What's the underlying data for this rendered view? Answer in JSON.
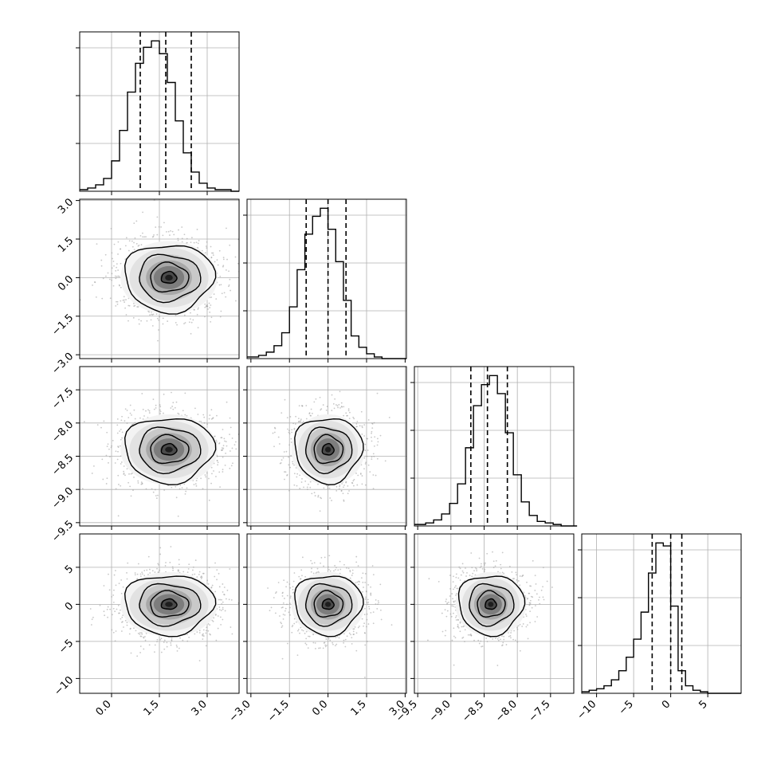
{
  "chart_data": {
    "type": "corner",
    "grid": true,
    "colors": {
      "line": "#000000",
      "grid": "#b0b0b0",
      "scatter": "#9a9a9a",
      "background": "#ffffff"
    },
    "parameters": [
      {
        "range": [
          -1.0,
          4.0
        ],
        "ticks": [
          0.0,
          1.5,
          3.0
        ],
        "tick_labels": [
          "0.0",
          "1.5",
          "3.0"
        ],
        "mean": 1.8,
        "std": 0.8,
        "quantiles": [
          0.9,
          1.7,
          2.5
        ]
      },
      {
        "range": [
          -3.15,
          3.05
        ],
        "ticks": [
          -3.0,
          -1.5,
          0.0,
          1.5,
          3.0
        ],
        "tick_labels": [
          "−3.0",
          "−1.5",
          "0.0",
          "1.5",
          "3.0"
        ],
        "mean": 0.0,
        "std": 0.75,
        "quantiles": [
          -0.85,
          0.0,
          0.7
        ]
      },
      {
        "range": [
          -9.55,
          -7.15
        ],
        "ticks": [
          -9.5,
          -9.0,
          -8.5,
          -8.0,
          -7.5
        ],
        "tick_labels": [
          "−9.5",
          "−9.0",
          "−8.5",
          "−8.0",
          "−7.5"
        ],
        "mean": -8.4,
        "std": 0.28,
        "quantiles": [
          -8.7,
          -8.45,
          -8.15
        ]
      },
      {
        "range": [
          -12.0,
          9.5
        ],
        "ticks": [
          -10,
          -5,
          0,
          5
        ],
        "tick_labels": [
          "−10",
          "−5",
          "0",
          "5"
        ],
        "mean": 0.0,
        "std": 2.3,
        "quantiles": [
          -2.5,
          0.0,
          1.5
        ]
      }
    ],
    "histograms": [
      {
        "param": 0,
        "bin_start": -1.0,
        "bin_width": 0.25,
        "counts": [
          1,
          2,
          4,
          8,
          19,
          38,
          62,
          80,
          90,
          94,
          86,
          68,
          44,
          24,
          12,
          5,
          2,
          1,
          1,
          0
        ]
      },
      {
        "param": 1,
        "bin_start": -3.0,
        "bin_width": 0.3,
        "counts": [
          1,
          2,
          4,
          8,
          16,
          32,
          55,
          77,
          88,
          93,
          80,
          60,
          36,
          14,
          7,
          3,
          1,
          0,
          0,
          0
        ]
      },
      {
        "param": 2,
        "bin_start": -9.5,
        "bin_width": 0.12,
        "counts": [
          1,
          2,
          4,
          8,
          15,
          28,
          52,
          80,
          94,
          100,
          88,
          62,
          34,
          16,
          7,
          3,
          2,
          1,
          0,
          0
        ]
      },
      {
        "param": 3,
        "bin_start": -12.0,
        "bin_width": 1.0,
        "counts": [
          1,
          2,
          3,
          5,
          9,
          15,
          24,
          36,
          54,
          80,
          100,
          98,
          58,
          15,
          5,
          2,
          1,
          0,
          0,
          0
        ]
      }
    ],
    "contour_levels": [
      0.12,
      0.45,
      0.78,
      0.95
    ],
    "pairs": [
      {
        "x": 0,
        "y": 1,
        "levels_x": [
          [
            0.8,
            0.7,
            1.1
          ],
          [
            1.3,
            1.1,
            1.5
          ],
          [
            1.9,
            1.7,
            2.3
          ],
          [
            2.6,
            2.4,
            3.1
          ]
        ]
      },
      {
        "x": 0,
        "y": 2,
        "levels_x": [
          [
            0.9,
            0.8,
            1.2
          ],
          [
            1.3,
            1.1,
            1.5
          ],
          [
            1.9,
            1.7,
            2.3
          ],
          [
            2.6,
            2.4,
            3.1
          ]
        ]
      },
      {
        "x": 1,
        "y": 2,
        "levels_x": [
          [
            0.5,
            0.4,
            0.6
          ],
          [
            0.9,
            0.8,
            1.0
          ],
          [
            1.5,
            1.4,
            1.7
          ],
          [
            2.3,
            2.1,
            2.5
          ]
        ]
      },
      {
        "x": 0,
        "y": 3,
        "levels_x": [
          [
            1.1,
            1.0,
            1.2
          ],
          [
            1.6,
            1.4,
            1.8
          ],
          [
            2.2,
            2.0,
            2.5
          ],
          [
            2.9,
            2.6,
            3.2
          ]
        ]
      },
      {
        "x": 1,
        "y": 3,
        "levels_x": [
          [
            0.5,
            0.4,
            0.6
          ],
          [
            0.9,
            0.8,
            1.0
          ],
          [
            1.5,
            1.4,
            1.7
          ],
          [
            2.3,
            2.1,
            2.5
          ]
        ]
      },
      {
        "x": 2,
        "y": 3,
        "levels_x": [
          [
            0.5,
            0.4,
            0.6
          ],
          [
            0.9,
            0.8,
            1.0
          ],
          [
            1.5,
            1.4,
            1.7
          ],
          [
            2.3,
            2.1,
            2.5
          ]
        ]
      }
    ]
  }
}
